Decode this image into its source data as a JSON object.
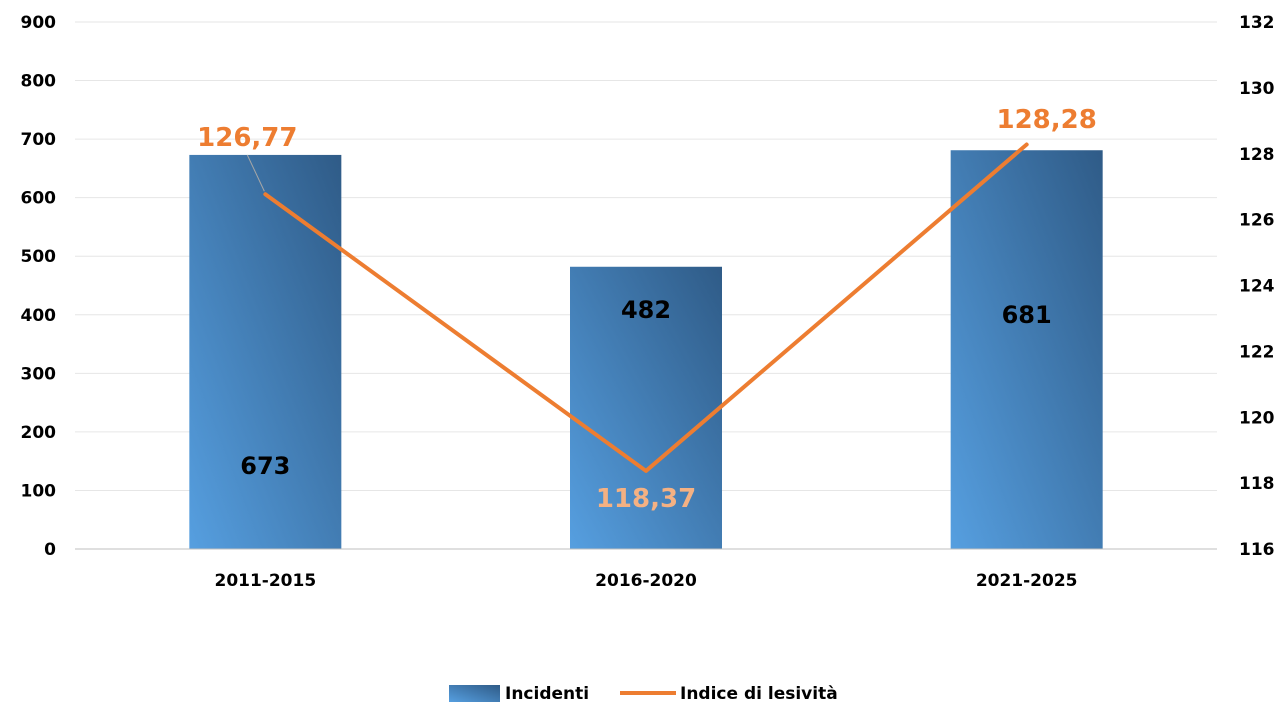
{
  "chart_data": {
    "type": "bar",
    "categories": [
      "2011-2015",
      "2016-2020",
      "2021-2025"
    ],
    "series": [
      {
        "name": "Incidenti",
        "type": "bar",
        "axis": "left",
        "values": [
          673,
          482,
          681
        ],
        "labels": [
          "673",
          "482",
          "681"
        ]
      },
      {
        "name": "Indice di lesività",
        "type": "line",
        "axis": "right",
        "values": [
          126.77,
          118.37,
          128.28
        ],
        "labels": [
          "126,77",
          "118,37",
          "128,28"
        ]
      }
    ],
    "y_left": {
      "ylim": [
        0,
        900
      ],
      "ticks": [
        "0",
        "100",
        "200",
        "300",
        "400",
        "500",
        "600",
        "700",
        "800",
        "900"
      ]
    },
    "y_right": {
      "ylim": [
        116,
        132
      ],
      "ticks": [
        "116",
        "118",
        "120",
        "122",
        "124",
        "126",
        "128",
        "130",
        "132"
      ]
    },
    "grid": true,
    "legend_position": "bottom",
    "colors": {
      "bar_light": "#569fe0",
      "bar_dark": "#2f5b87",
      "line": "#ed7d31",
      "line_label": "#ed7d31",
      "line_label_on_bar": "#f4b183",
      "grid": "#e6e6e6",
      "axis": "#bfbfbf"
    }
  }
}
